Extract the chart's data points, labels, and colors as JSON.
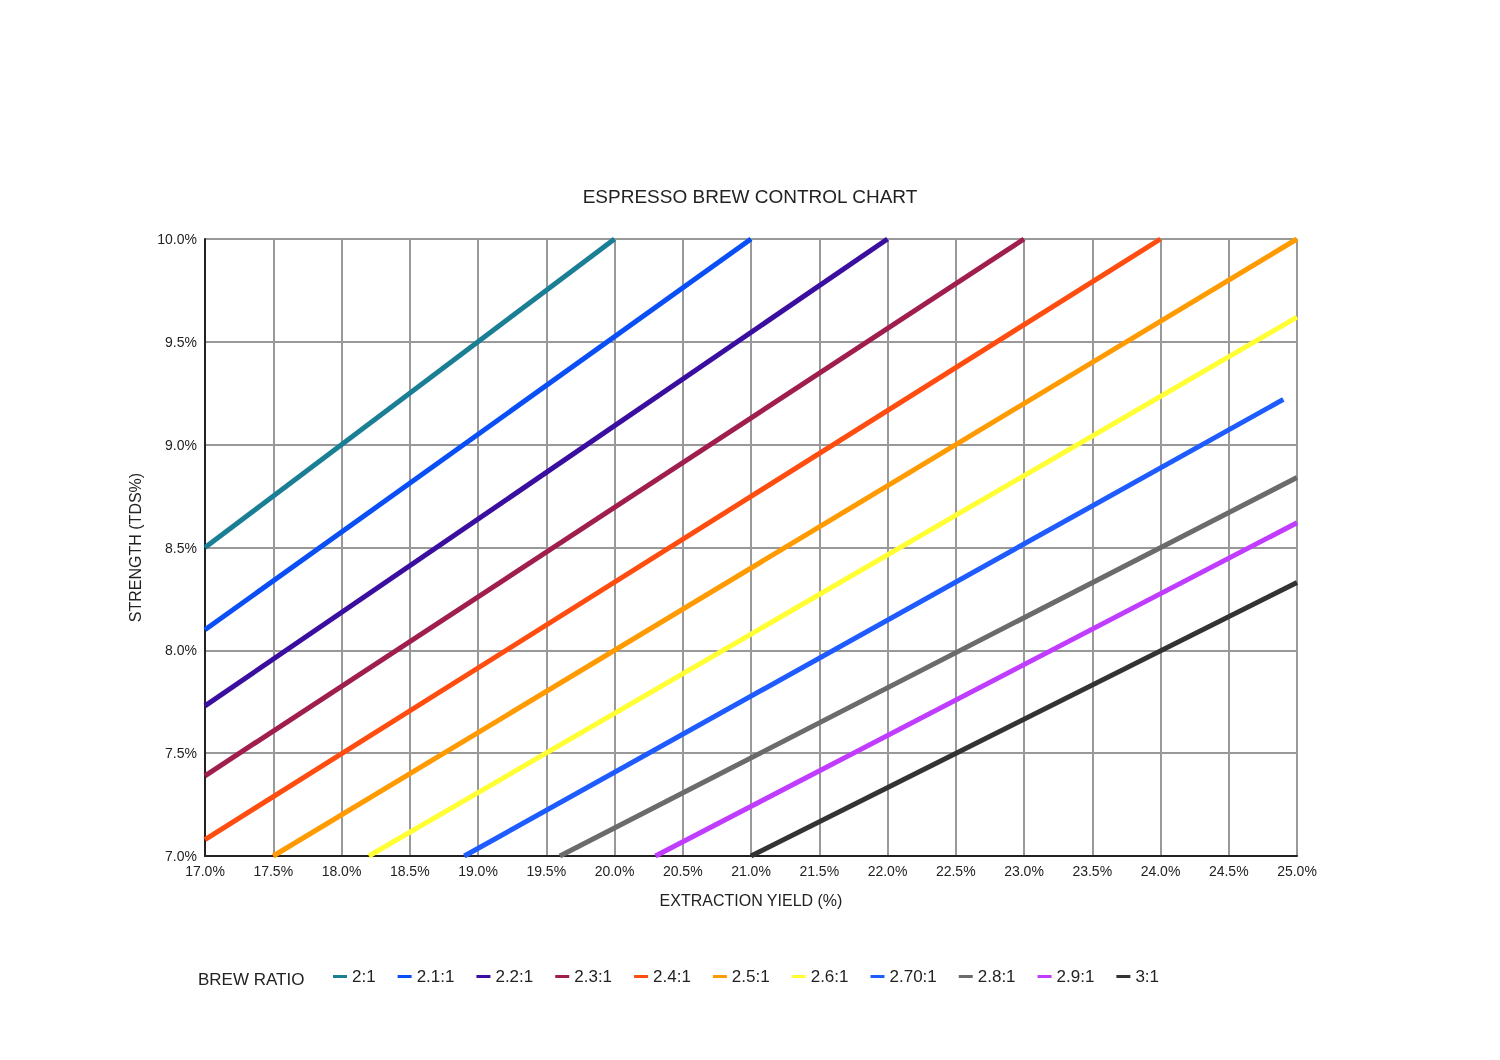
{
  "chart_data": {
    "type": "line",
    "title": "ESPRESSO BREW CONTROL CHART",
    "xlabel": "EXTRACTION YIELD (%)",
    "ylabel": "STRENGTH (TDS%)",
    "legend_title": "BREW RATIO",
    "legend": "bottom",
    "grid": true,
    "marker": "none",
    "line_style": "solid",
    "xlim": [
      17,
      25
    ],
    "ylim": [
      7,
      10
    ],
    "xticks": [
      {
        "value": 17,
        "label": "17.0%"
      },
      {
        "value": 17.5,
        "label": "17.5%"
      },
      {
        "value": 18,
        "label": "18.0%"
      },
      {
        "value": 18.5,
        "label": "18.5%"
      },
      {
        "value": 19,
        "label": "19.0%"
      },
      {
        "value": 19.5,
        "label": "19.5%"
      },
      {
        "value": 20,
        "label": "20.0%"
      },
      {
        "value": 20.5,
        "label": "20.5%"
      },
      {
        "value": 21,
        "label": "21.0%"
      },
      {
        "value": 21.5,
        "label": "21.5%"
      },
      {
        "value": 22,
        "label": "22.0%"
      },
      {
        "value": 22.5,
        "label": "22.5%"
      },
      {
        "value": 23,
        "label": "23.0%"
      },
      {
        "value": 23.5,
        "label": "23.5%"
      },
      {
        "value": 24,
        "label": "24.0%"
      },
      {
        "value": 24.5,
        "label": "24.5%"
      },
      {
        "value": 25,
        "label": "25.0%"
      }
    ],
    "yticks": [
      {
        "value": 7,
        "label": "7.0%"
      },
      {
        "value": 7.5,
        "label": "7.5%"
      },
      {
        "value": 8,
        "label": "8.0%"
      },
      {
        "value": 8.5,
        "label": "8.5%"
      },
      {
        "value": 9,
        "label": "9.0%"
      },
      {
        "value": 9.5,
        "label": "9.5%"
      },
      {
        "value": 10,
        "label": "10.0%"
      }
    ],
    "series": [
      {
        "name": "2:1",
        "color": "#1a7f94",
        "x": [
          17,
          20
        ],
        "values": [
          8.5,
          10
        ]
      },
      {
        "name": "2.1:1",
        "color": "#0a4ff5",
        "x": [
          17,
          21
        ],
        "values": [
          8.1,
          10
        ]
      },
      {
        "name": "2.2:1",
        "color": "#3a0fa0",
        "x": [
          17,
          22
        ],
        "values": [
          7.73,
          10
        ]
      },
      {
        "name": "2.3:1",
        "color": "#a01e4e",
        "x": [
          17,
          23
        ],
        "values": [
          7.39,
          10
        ]
      },
      {
        "name": "2.4:1",
        "color": "#ff4d10",
        "x": [
          17,
          24
        ],
        "values": [
          7.08,
          10
        ]
      },
      {
        "name": "2.5:1",
        "color": "#ff9a00",
        "x": [
          17.5,
          25
        ],
        "values": [
          7,
          10
        ]
      },
      {
        "name": "2.6:1",
        "color": "#ffff33",
        "x": [
          18.2,
          25
        ],
        "values": [
          7,
          9.62
        ]
      },
      {
        "name": "2.70:1",
        "color": "#1f5cff",
        "x": [
          18.9,
          24.9
        ],
        "values": [
          7,
          9.22
        ]
      },
      {
        "name": "2.8:1",
        "color": "#6b6b6b",
        "x": [
          19.6,
          25
        ],
        "values": [
          7,
          8.84
        ]
      },
      {
        "name": "2.9:1",
        "color": "#c03cff",
        "x": [
          20.3,
          25
        ],
        "values": [
          7,
          8.62
        ]
      },
      {
        "name": "3:1",
        "color": "#333333",
        "x": [
          21,
          25
        ],
        "values": [
          7,
          8.33
        ]
      }
    ]
  }
}
